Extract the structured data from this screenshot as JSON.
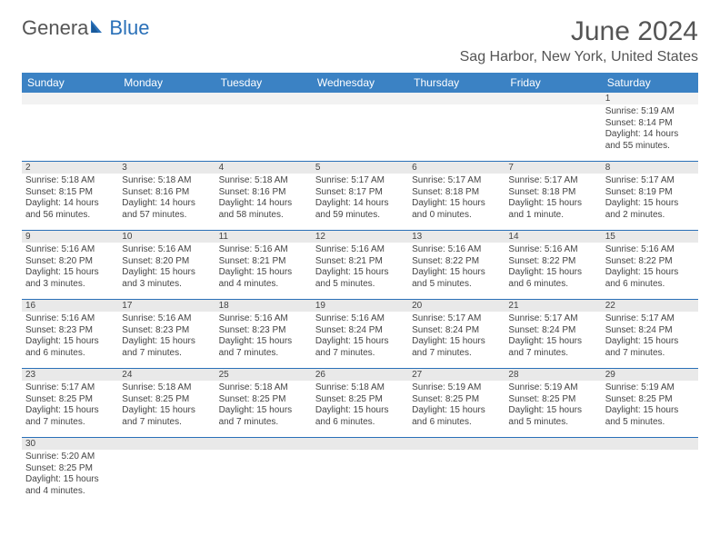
{
  "logo": {
    "text1": "Genera",
    "text2": "Blue"
  },
  "title": "June 2024",
  "location": "Sag Harbor, New York, United States",
  "colors": {
    "header_bg": "#3b82c4",
    "header_text": "#ffffff",
    "border": "#2a70b8",
    "daynum_bg": "#e9e9e9",
    "text": "#444444",
    "title_text": "#555555",
    "logo_blue": "#2a70b8"
  },
  "day_headers": [
    "Sunday",
    "Monday",
    "Tuesday",
    "Wednesday",
    "Thursday",
    "Friday",
    "Saturday"
  ],
  "weeks": [
    [
      null,
      null,
      null,
      null,
      null,
      null,
      {
        "n": "1",
        "sr": "5:19 AM",
        "ss": "8:14 PM",
        "dl": "14 hours and 55 minutes."
      }
    ],
    [
      {
        "n": "2",
        "sr": "5:18 AM",
        "ss": "8:15 PM",
        "dl": "14 hours and 56 minutes."
      },
      {
        "n": "3",
        "sr": "5:18 AM",
        "ss": "8:16 PM",
        "dl": "14 hours and 57 minutes."
      },
      {
        "n": "4",
        "sr": "5:18 AM",
        "ss": "8:16 PM",
        "dl": "14 hours and 58 minutes."
      },
      {
        "n": "5",
        "sr": "5:17 AM",
        "ss": "8:17 PM",
        "dl": "14 hours and 59 minutes."
      },
      {
        "n": "6",
        "sr": "5:17 AM",
        "ss": "8:18 PM",
        "dl": "15 hours and 0 minutes."
      },
      {
        "n": "7",
        "sr": "5:17 AM",
        "ss": "8:18 PM",
        "dl": "15 hours and 1 minute."
      },
      {
        "n": "8",
        "sr": "5:17 AM",
        "ss": "8:19 PM",
        "dl": "15 hours and 2 minutes."
      }
    ],
    [
      {
        "n": "9",
        "sr": "5:16 AM",
        "ss": "8:20 PM",
        "dl": "15 hours and 3 minutes."
      },
      {
        "n": "10",
        "sr": "5:16 AM",
        "ss": "8:20 PM",
        "dl": "15 hours and 3 minutes."
      },
      {
        "n": "11",
        "sr": "5:16 AM",
        "ss": "8:21 PM",
        "dl": "15 hours and 4 minutes."
      },
      {
        "n": "12",
        "sr": "5:16 AM",
        "ss": "8:21 PM",
        "dl": "15 hours and 5 minutes."
      },
      {
        "n": "13",
        "sr": "5:16 AM",
        "ss": "8:22 PM",
        "dl": "15 hours and 5 minutes."
      },
      {
        "n": "14",
        "sr": "5:16 AM",
        "ss": "8:22 PM",
        "dl": "15 hours and 6 minutes."
      },
      {
        "n": "15",
        "sr": "5:16 AM",
        "ss": "8:22 PM",
        "dl": "15 hours and 6 minutes."
      }
    ],
    [
      {
        "n": "16",
        "sr": "5:16 AM",
        "ss": "8:23 PM",
        "dl": "15 hours and 6 minutes."
      },
      {
        "n": "17",
        "sr": "5:16 AM",
        "ss": "8:23 PM",
        "dl": "15 hours and 7 minutes."
      },
      {
        "n": "18",
        "sr": "5:16 AM",
        "ss": "8:23 PM",
        "dl": "15 hours and 7 minutes."
      },
      {
        "n": "19",
        "sr": "5:16 AM",
        "ss": "8:24 PM",
        "dl": "15 hours and 7 minutes."
      },
      {
        "n": "20",
        "sr": "5:17 AM",
        "ss": "8:24 PM",
        "dl": "15 hours and 7 minutes."
      },
      {
        "n": "21",
        "sr": "5:17 AM",
        "ss": "8:24 PM",
        "dl": "15 hours and 7 minutes."
      },
      {
        "n": "22",
        "sr": "5:17 AM",
        "ss": "8:24 PM",
        "dl": "15 hours and 7 minutes."
      }
    ],
    [
      {
        "n": "23",
        "sr": "5:17 AM",
        "ss": "8:25 PM",
        "dl": "15 hours and 7 minutes."
      },
      {
        "n": "24",
        "sr": "5:18 AM",
        "ss": "8:25 PM",
        "dl": "15 hours and 7 minutes."
      },
      {
        "n": "25",
        "sr": "5:18 AM",
        "ss": "8:25 PM",
        "dl": "15 hours and 7 minutes."
      },
      {
        "n": "26",
        "sr": "5:18 AM",
        "ss": "8:25 PM",
        "dl": "15 hours and 6 minutes."
      },
      {
        "n": "27",
        "sr": "5:19 AM",
        "ss": "8:25 PM",
        "dl": "15 hours and 6 minutes."
      },
      {
        "n": "28",
        "sr": "5:19 AM",
        "ss": "8:25 PM",
        "dl": "15 hours and 5 minutes."
      },
      {
        "n": "29",
        "sr": "5:19 AM",
        "ss": "8:25 PM",
        "dl": "15 hours and 5 minutes."
      }
    ],
    [
      {
        "n": "30",
        "sr": "5:20 AM",
        "ss": "8:25 PM",
        "dl": "15 hours and 4 minutes."
      },
      null,
      null,
      null,
      null,
      null,
      null
    ]
  ],
  "labels": {
    "sunrise": "Sunrise:",
    "sunset": "Sunset:",
    "daylight": "Daylight:"
  }
}
